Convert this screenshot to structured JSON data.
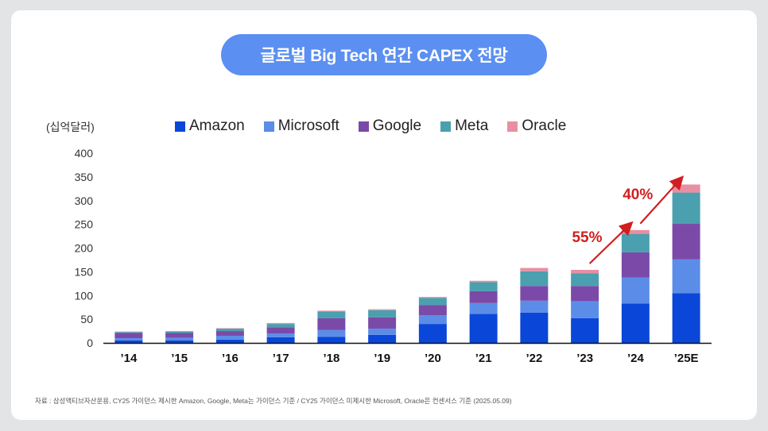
{
  "title": "글로벌 Big Tech 연간 CAPEX 전망",
  "unit_label": "(십억달러)",
  "footnote": "자료 : 삼성액티브자산운용, CY25 가이던스 제시한 Amazon, Google, Meta는 가이던스 기준 / CY25 가이던스 미제시한 Microsoft, Oracle은 컨센서스 기준 (2025.05.09)",
  "colors": {
    "Amazon": "#0a47d9",
    "Microsoft": "#5b8de8",
    "Google": "#7b4aa8",
    "Meta": "#4aa0ae",
    "Oracle": "#e88fa3",
    "annotation": "#d11f1f"
  },
  "chart_data": {
    "type": "bar",
    "stacked": true,
    "title": "글로벌 Big Tech 연간 CAPEX 전망",
    "ylabel": "(십억달러)",
    "xlabel": "",
    "ylim": [
      0,
      400
    ],
    "yticks": [
      0,
      50,
      100,
      150,
      200,
      250,
      300,
      350,
      400
    ],
    "categories": [
      "'14",
      "'15",
      "'16",
      "'17",
      "'18",
      "'19",
      "'20",
      "'21",
      "'22",
      "'23",
      "'24",
      "'25E"
    ],
    "series": [
      {
        "name": "Amazon",
        "values": [
          5,
          5,
          7,
          12,
          13,
          17,
          40,
          61,
          64,
          52,
          83,
          105
        ]
      },
      {
        "name": "Microsoft",
        "values": [
          5,
          6,
          8,
          8,
          14,
          13,
          18,
          23,
          25,
          36,
          55,
          71
        ]
      },
      {
        "name": "Google",
        "values": [
          11,
          10,
          10,
          13,
          25,
          24,
          22,
          25,
          31,
          32,
          53,
          75
        ]
      },
      {
        "name": "Meta",
        "values": [
          2,
          3,
          5,
          7,
          14,
          15,
          15,
          19,
          31,
          27,
          39,
          66
        ]
      },
      {
        "name": "Oracle",
        "values": [
          1,
          1,
          1,
          2,
          2,
          2,
          2,
          3,
          7,
          7,
          8,
          17
        ]
      }
    ],
    "annotations": [
      {
        "label": "55%",
        "from": "'23",
        "to": "'24"
      },
      {
        "label": "40%",
        "from": "'24",
        "to": "'25E"
      }
    ],
    "legend": "top-center"
  }
}
